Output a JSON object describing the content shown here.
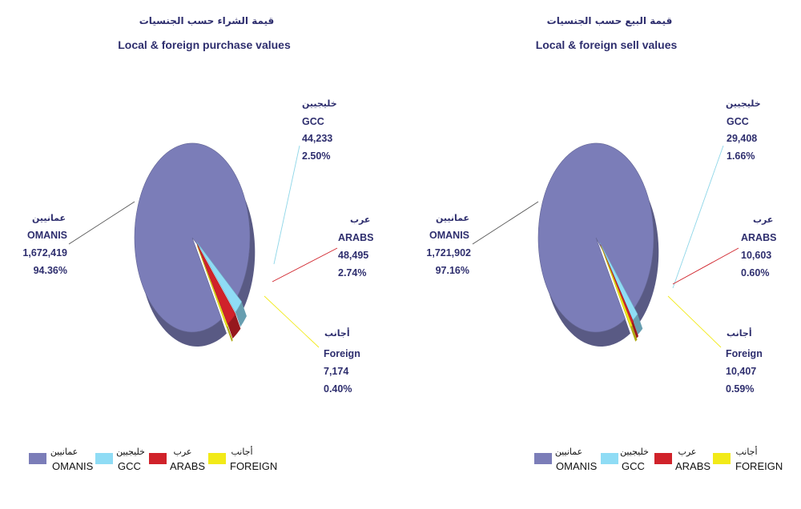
{
  "chart_data": [
    {
      "type": "pie",
      "title_ar": "قيمة الشراء حسب الجنسيات",
      "title": "Local & foreign purchase values",
      "slices": [
        {
          "key": "omanis",
          "label_ar": "عمانيين",
          "label": "OMANIS",
          "value": 1672419,
          "value_text": "1,672,419",
          "percent_text": "94.36%"
        },
        {
          "key": "gcc",
          "label_ar": "خليجيين",
          "label": "GCC",
          "value": 44233,
          "value_text": "44,233",
          "percent_text": "2.50%"
        },
        {
          "key": "arabs",
          "label_ar": "عرب",
          "label": "ARABS",
          "value": 48495,
          "value_text": "48,495",
          "percent_text": "2.74%"
        },
        {
          "key": "foreign",
          "label_ar": "أجانب",
          "label": "Foreign",
          "value": 7174,
          "value_text": "7,174",
          "percent_text": "0.40%"
        }
      ]
    },
    {
      "type": "pie",
      "title_ar": "قيمة البيع حسب الجنسيات",
      "title": "Local & foreign sell values",
      "slices": [
        {
          "key": "omanis",
          "label_ar": "عمانيين",
          "label": "OMANIS",
          "value": 1721902,
          "value_text": "1,721,902",
          "percent_text": "97.16%"
        },
        {
          "key": "gcc",
          "label_ar": "خليجيين",
          "label": "GCC",
          "value": 29408,
          "value_text": "29,408",
          "percent_text": "1.66%"
        },
        {
          "key": "arabs",
          "label_ar": "عرب",
          "label": "ARABS",
          "value": 10603,
          "value_text": "10,603",
          "percent_text": "0.60%"
        },
        {
          "key": "foreign",
          "label_ar": "أجانب",
          "label": "Foreign",
          "value": 10407,
          "value_text": "10,407",
          "percent_text": "0.59%"
        }
      ]
    }
  ],
  "legend": [
    {
      "key": "omanis",
      "label_ar": "عمانيين",
      "label": "OMANIS"
    },
    {
      "key": "gcc",
      "label_ar": "خليجيين",
      "label": "GCC"
    },
    {
      "key": "arabs",
      "label_ar": "عرب",
      "label": "ARABS"
    },
    {
      "key": "foreign",
      "label_ar": "أجانب",
      "label": "FOREIGN"
    }
  ],
  "colors": {
    "omanis": "#7b7db8",
    "gcc": "#8fdcf5",
    "arabs": "#d0222a",
    "foreign": "#f2ea18",
    "leader_gcc": "#8ed6e8",
    "leader_arabs": "#d0222a",
    "leader_foreign": "#f2ea18",
    "leader_omanis": "#555555"
  }
}
